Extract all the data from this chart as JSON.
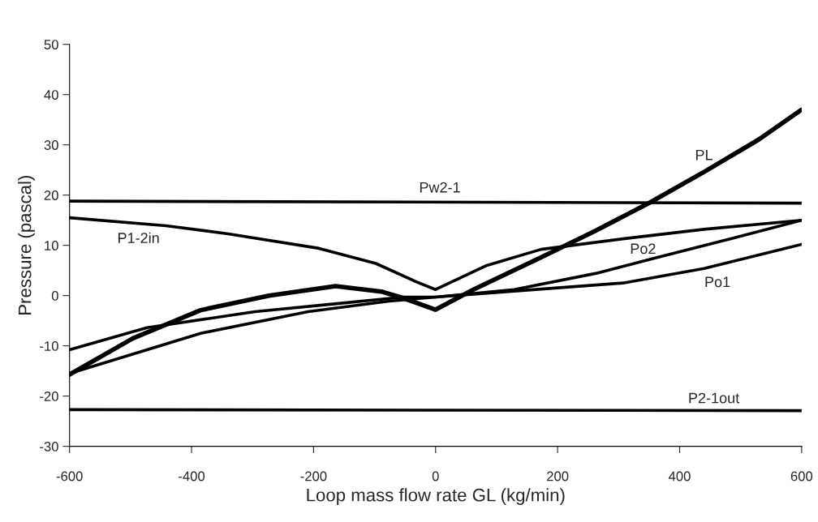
{
  "chart_data": {
    "type": "line",
    "xlabel": "Loop mass flow rate GL (kg/min)",
    "ylabel": "Pressure (pascal)",
    "xlim": [
      -600,
      600
    ],
    "ylim": [
      -30,
      50
    ],
    "xticks": [
      -600,
      -400,
      -200,
      0,
      200,
      400,
      600
    ],
    "yticks": [
      -30,
      -20,
      -10,
      0,
      10,
      20,
      30,
      40,
      50
    ],
    "grid": false,
    "marker": "none",
    "line_style": "solid",
    "series": [
      {
        "name": "Pw2-1",
        "color": "#000000",
        "x": [
          -600,
          600
        ],
        "values": [
          18.8,
          18.4
        ]
      },
      {
        "name": "P1-2in",
        "color": "#000000",
        "x": [
          -600,
          -442,
          -340,
          -191,
          -98,
          -31,
          0,
          84,
          173,
          307,
          440,
          600
        ],
        "values": [
          15.5,
          13.9,
          12.3,
          9.4,
          6.4,
          2.7,
          1.2,
          6.0,
          9.2,
          11.3,
          13.2,
          15.0
        ]
      },
      {
        "name": "PL",
        "color": "#000000",
        "x": [
          -600,
          -496,
          -385,
          -273,
          -164,
          -89,
          -53,
          0,
          62,
          173,
          262,
          351,
          440,
          529,
          600
        ],
        "values": [
          -15.7,
          -8.5,
          -2.9,
          0.0,
          1.9,
          0.8,
          -0.5,
          -2.8,
          1.2,
          7.6,
          12.9,
          18.5,
          24.6,
          31.0,
          37.0
        ]
      },
      {
        "name": "Po1",
        "color": "#000000",
        "x": [
          -600,
          -473,
          -296,
          -162,
          -53,
          0,
          129,
          307,
          440,
          600
        ],
        "values": [
          -10.8,
          -6.4,
          -3.2,
          -1.6,
          -0.3,
          -0.3,
          0.9,
          2.5,
          5.4,
          10.2
        ]
      },
      {
        "name": "Po2",
        "color": "#000000",
        "x": [
          -600,
          -385,
          -209,
          -76,
          0,
          129,
          262,
          364,
          484,
          600
        ],
        "values": [
          -15.5,
          -7.5,
          -3.2,
          -1.1,
          -0.3,
          1.2,
          4.4,
          7.6,
          11.3,
          15.0
        ]
      },
      {
        "name": "P2-1out",
        "color": "#000000",
        "x": [
          -600,
          600
        ],
        "values": [
          -22.7,
          -22.9
        ]
      }
    ]
  }
}
